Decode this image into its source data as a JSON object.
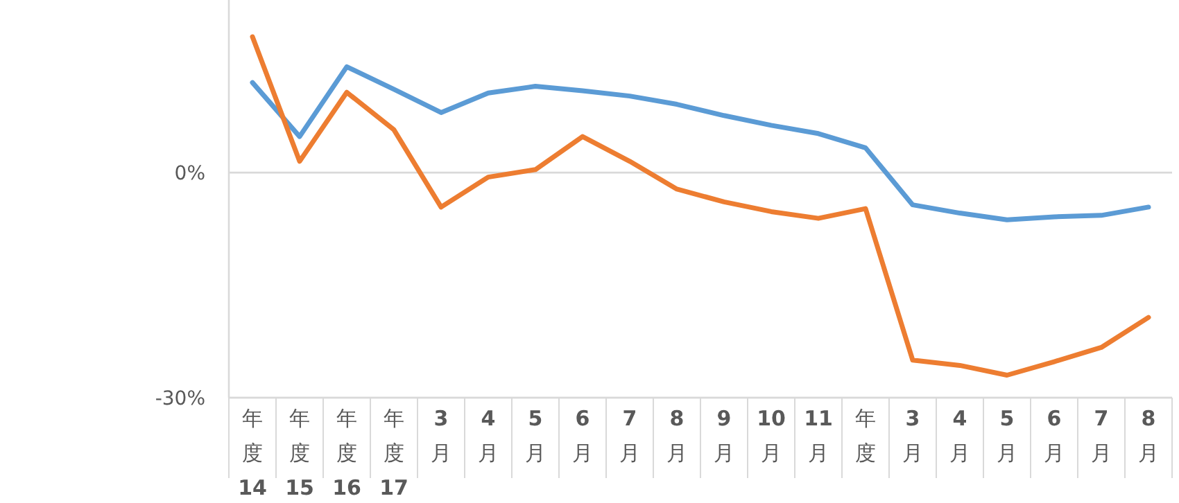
{
  "chart_data": {
    "type": "line",
    "categories": [
      "年度14",
      "年度15",
      "年度16",
      "年度17",
      "3月",
      "4月",
      "5月",
      "6月",
      "7月",
      "8月",
      "9月",
      "10月",
      "11月",
      "年度",
      "3月",
      "4月",
      "5月",
      "6月",
      "7月",
      "8月"
    ],
    "series": [
      {
        "color": "#5b9bd5",
        "values": [
          12.0,
          4.8,
          14.1,
          11.1,
          8.0,
          10.6,
          11.5,
          10.9,
          10.2,
          9.1,
          7.6,
          6.3,
          5.2,
          3.3,
          -4.3,
          -5.4,
          -6.3,
          -5.9,
          -5.7,
          -4.6
        ]
      },
      {
        "color": "#ed7d31",
        "values": [
          18.1,
          1.5,
          10.7,
          5.7,
          -4.6,
          -0.6,
          0.4,
          4.8,
          1.5,
          -2.2,
          -3.9,
          -5.2,
          -6.1,
          -4.8,
          -25.0,
          -25.7,
          -27.0,
          -25.2,
          -23.3,
          -19.3
        ]
      }
    ],
    "ylim": [
      -30,
      23
    ],
    "yticks": [
      {
        "value": 0,
        "label": "0%"
      },
      {
        "value": -30,
        "label": "-30%"
      }
    ],
    "grid": "y",
    "marker": "none",
    "line_style": "solid"
  }
}
